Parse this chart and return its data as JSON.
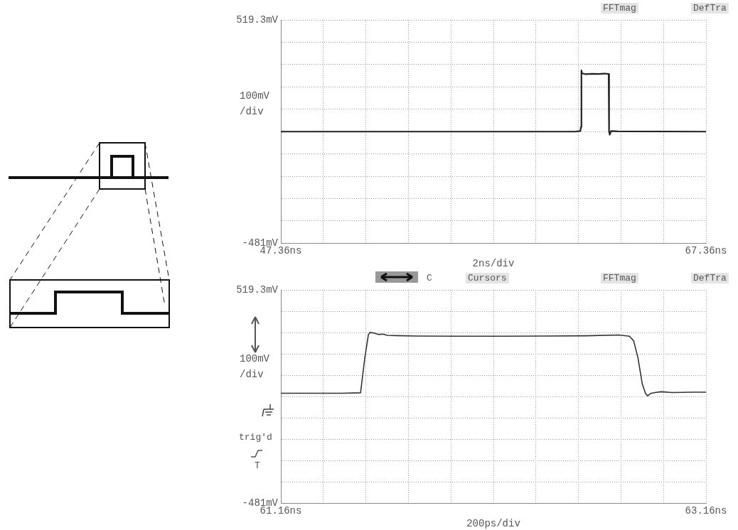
{
  "chart_data": [
    {
      "type": "line",
      "ylabel": "100mV/div",
      "xlabel": "2ns/div",
      "annotations": [
        "FFTmag",
        "DefTra"
      ],
      "grid": true,
      "legend": false,
      "marker": "none",
      "xlim": [
        47.36,
        67.36
      ],
      "ylim": [
        -481,
        519.3
      ],
      "xticks": [
        {
          "value": 47.36,
          "label": "47.36ns"
        },
        {
          "value": 49.36,
          "label": null
        },
        {
          "value": 51.36,
          "label": null
        },
        {
          "value": 53.36,
          "label": null
        },
        {
          "value": 55.36,
          "label": null
        },
        {
          "value": 57.36,
          "label": null
        },
        {
          "value": 59.36,
          "label": null
        },
        {
          "value": 61.36,
          "label": null
        },
        {
          "value": 63.36,
          "label": null
        },
        {
          "value": 65.36,
          "label": null
        },
        {
          "value": 67.36,
          "label": "67.36ns"
        }
      ],
      "yticks": [
        {
          "value": 519.3,
          "label": "519.3mV"
        },
        {
          "value": 419.3,
          "label": null
        },
        {
          "value": 319.3,
          "label": null
        },
        {
          "value": 219.3,
          "label": null
        },
        {
          "value": 119.3,
          "label": null
        },
        {
          "value": 19.3,
          "label": null
        },
        {
          "value": -80.7,
          "label": null
        },
        {
          "value": -180.7,
          "label": null
        },
        {
          "value": -280.7,
          "label": null
        },
        {
          "value": -380.7,
          "label": null
        },
        {
          "value": -481,
          "label": "-481mV"
        }
      ],
      "series": [
        {
          "color": "#222222",
          "x": [
            47.36,
            55.0,
            61.2,
            61.45,
            61.48,
            61.5,
            61.53,
            61.7,
            62.0,
            62.3,
            62.6,
            62.78,
            62.8,
            62.83,
            62.9,
            63.2,
            67.36
          ],
          "values": [
            19,
            19,
            19,
            22,
            40,
            293,
            280,
            276,
            278,
            277,
            279,
            277,
            22,
            5,
            22,
            20,
            19
          ]
        }
      ]
    },
    {
      "type": "line",
      "ylabel": "100mV/div",
      "xlabel": "200ps/div",
      "annotations": [
        "C",
        "Cursors",
        "FFTmag",
        "DefTra",
        "trig'd",
        "T"
      ],
      "grid": true,
      "legend": false,
      "marker": "none",
      "xlim": [
        61.16,
        63.16
      ],
      "ylim": [
        -481,
        519.3
      ],
      "xticks": [
        {
          "value": 61.16,
          "label": "61.16ns"
        },
        {
          "value": 61.36,
          "label": null
        },
        {
          "value": 61.56,
          "label": null
        },
        {
          "value": 61.76,
          "label": null
        },
        {
          "value": 61.96,
          "label": null
        },
        {
          "value": 62.16,
          "label": null
        },
        {
          "value": 62.36,
          "label": null
        },
        {
          "value": 62.56,
          "label": null
        },
        {
          "value": 62.76,
          "label": null
        },
        {
          "value": 62.96,
          "label": null
        },
        {
          "value": 63.16,
          "label": "63.16ns"
        }
      ],
      "yticks": [
        {
          "value": 519.3,
          "label": "519.3mV"
        },
        {
          "value": 419.3,
          "label": null
        },
        {
          "value": 319.3,
          "label": null
        },
        {
          "value": 219.3,
          "label": null
        },
        {
          "value": 119.3,
          "label": null
        },
        {
          "value": 19.3,
          "label": null
        },
        {
          "value": -80.7,
          "label": null
        },
        {
          "value": -180.7,
          "label": null
        },
        {
          "value": -280.7,
          "label": null
        },
        {
          "value": -380.7,
          "label": null
        },
        {
          "value": -481,
          "label": "-481mV"
        }
      ],
      "series": [
        {
          "color": "#333333",
          "x": [
            61.16,
            61.3,
            61.45,
            61.535,
            61.555,
            61.572,
            61.58,
            61.6,
            61.62,
            61.64,
            61.66,
            61.7,
            61.8,
            62.0,
            62.2,
            62.4,
            62.6,
            62.75,
            62.8,
            62.82,
            62.84,
            62.86,
            62.875,
            62.885,
            62.9,
            62.92,
            62.95,
            63.0,
            63.1,
            63.16
          ],
          "values": [
            35,
            35,
            35,
            37,
            200,
            310,
            320,
            316,
            310,
            312,
            306,
            305,
            303,
            302,
            302,
            303,
            304,
            308,
            302,
            280,
            200,
            80,
            35,
            22,
            34,
            38,
            42,
            38,
            40,
            40
          ]
        }
      ]
    }
  ]
}
